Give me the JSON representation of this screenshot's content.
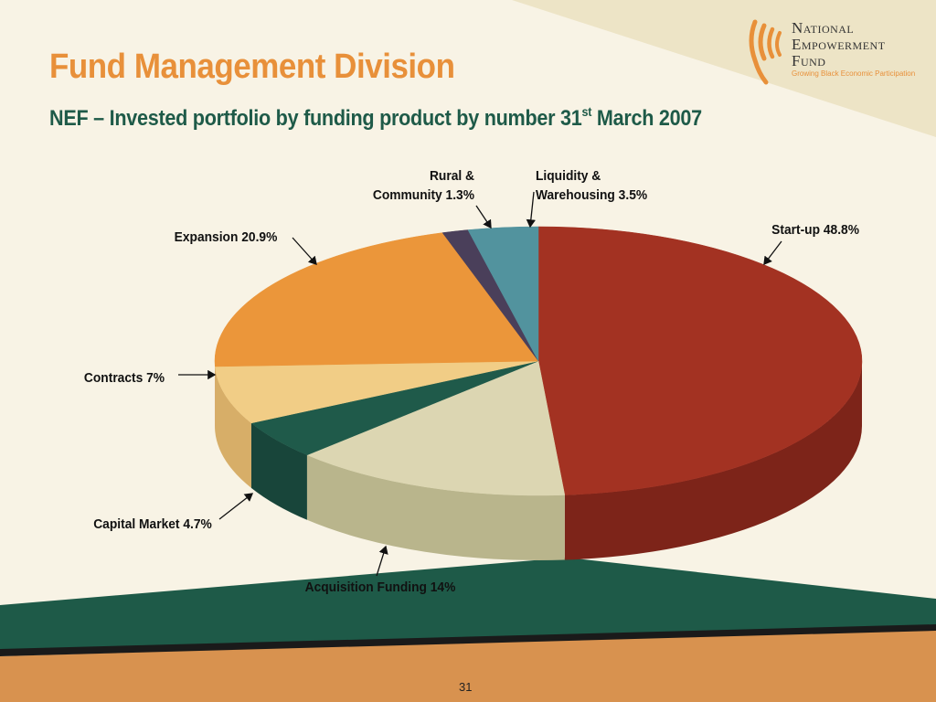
{
  "slide": {
    "title": "Fund Management Division",
    "subtitle_main": "NEF – Invested portfolio by funding product by number 31",
    "subtitle_sup": "st",
    "subtitle_end": " March 2007",
    "number": "31"
  },
  "logo": {
    "line1": "National",
    "line2": "Empowerment",
    "line3": "Fund",
    "tagline": "Growing Black Economic Participation"
  },
  "colors": {
    "accent_orange": "#e8903a",
    "title_green": "#1e5a48",
    "footer_green": "#1e5a48",
    "footer_orange": "#d8924f"
  },
  "chart_data": {
    "type": "pie",
    "style": "3d",
    "title": "",
    "slices": [
      {
        "label": "Start-up",
        "value": 48.8,
        "display": "Start-up 48.8%",
        "color": "#a33222",
        "side_color": "#7d2419"
      },
      {
        "label": "Acquisition Funding",
        "value": 14,
        "display": "Acquisition Funding 14%",
        "color": "#dcd6b2",
        "side_color": "#b9b58c"
      },
      {
        "label": "Capital Market",
        "value": 4.7,
        "display": "Capital Market 4.7%",
        "color": "#1f5a4a",
        "side_color": "#18453a"
      },
      {
        "label": "Contracts",
        "value": 7,
        "display": "Contracts 7%",
        "color": "#f1cd86",
        "side_color": "#d7ae68"
      },
      {
        "label": "Expansion",
        "value": 20.9,
        "display": "Expansion 20.9%",
        "color": "#eb963a",
        "side_color": "#c5782a"
      },
      {
        "label": "Rural & Community",
        "value": 1.3,
        "display": "Rural &\nCommunity 1.3%",
        "color": "#4a3f5a",
        "side_color": "#362e44"
      },
      {
        "label": "Liquidity & Warehousing",
        "value": 3.5,
        "display": "Liquidity &\nWarehousing 3.5%",
        "color": "#52939e",
        "side_color": "#3d717a"
      }
    ]
  }
}
